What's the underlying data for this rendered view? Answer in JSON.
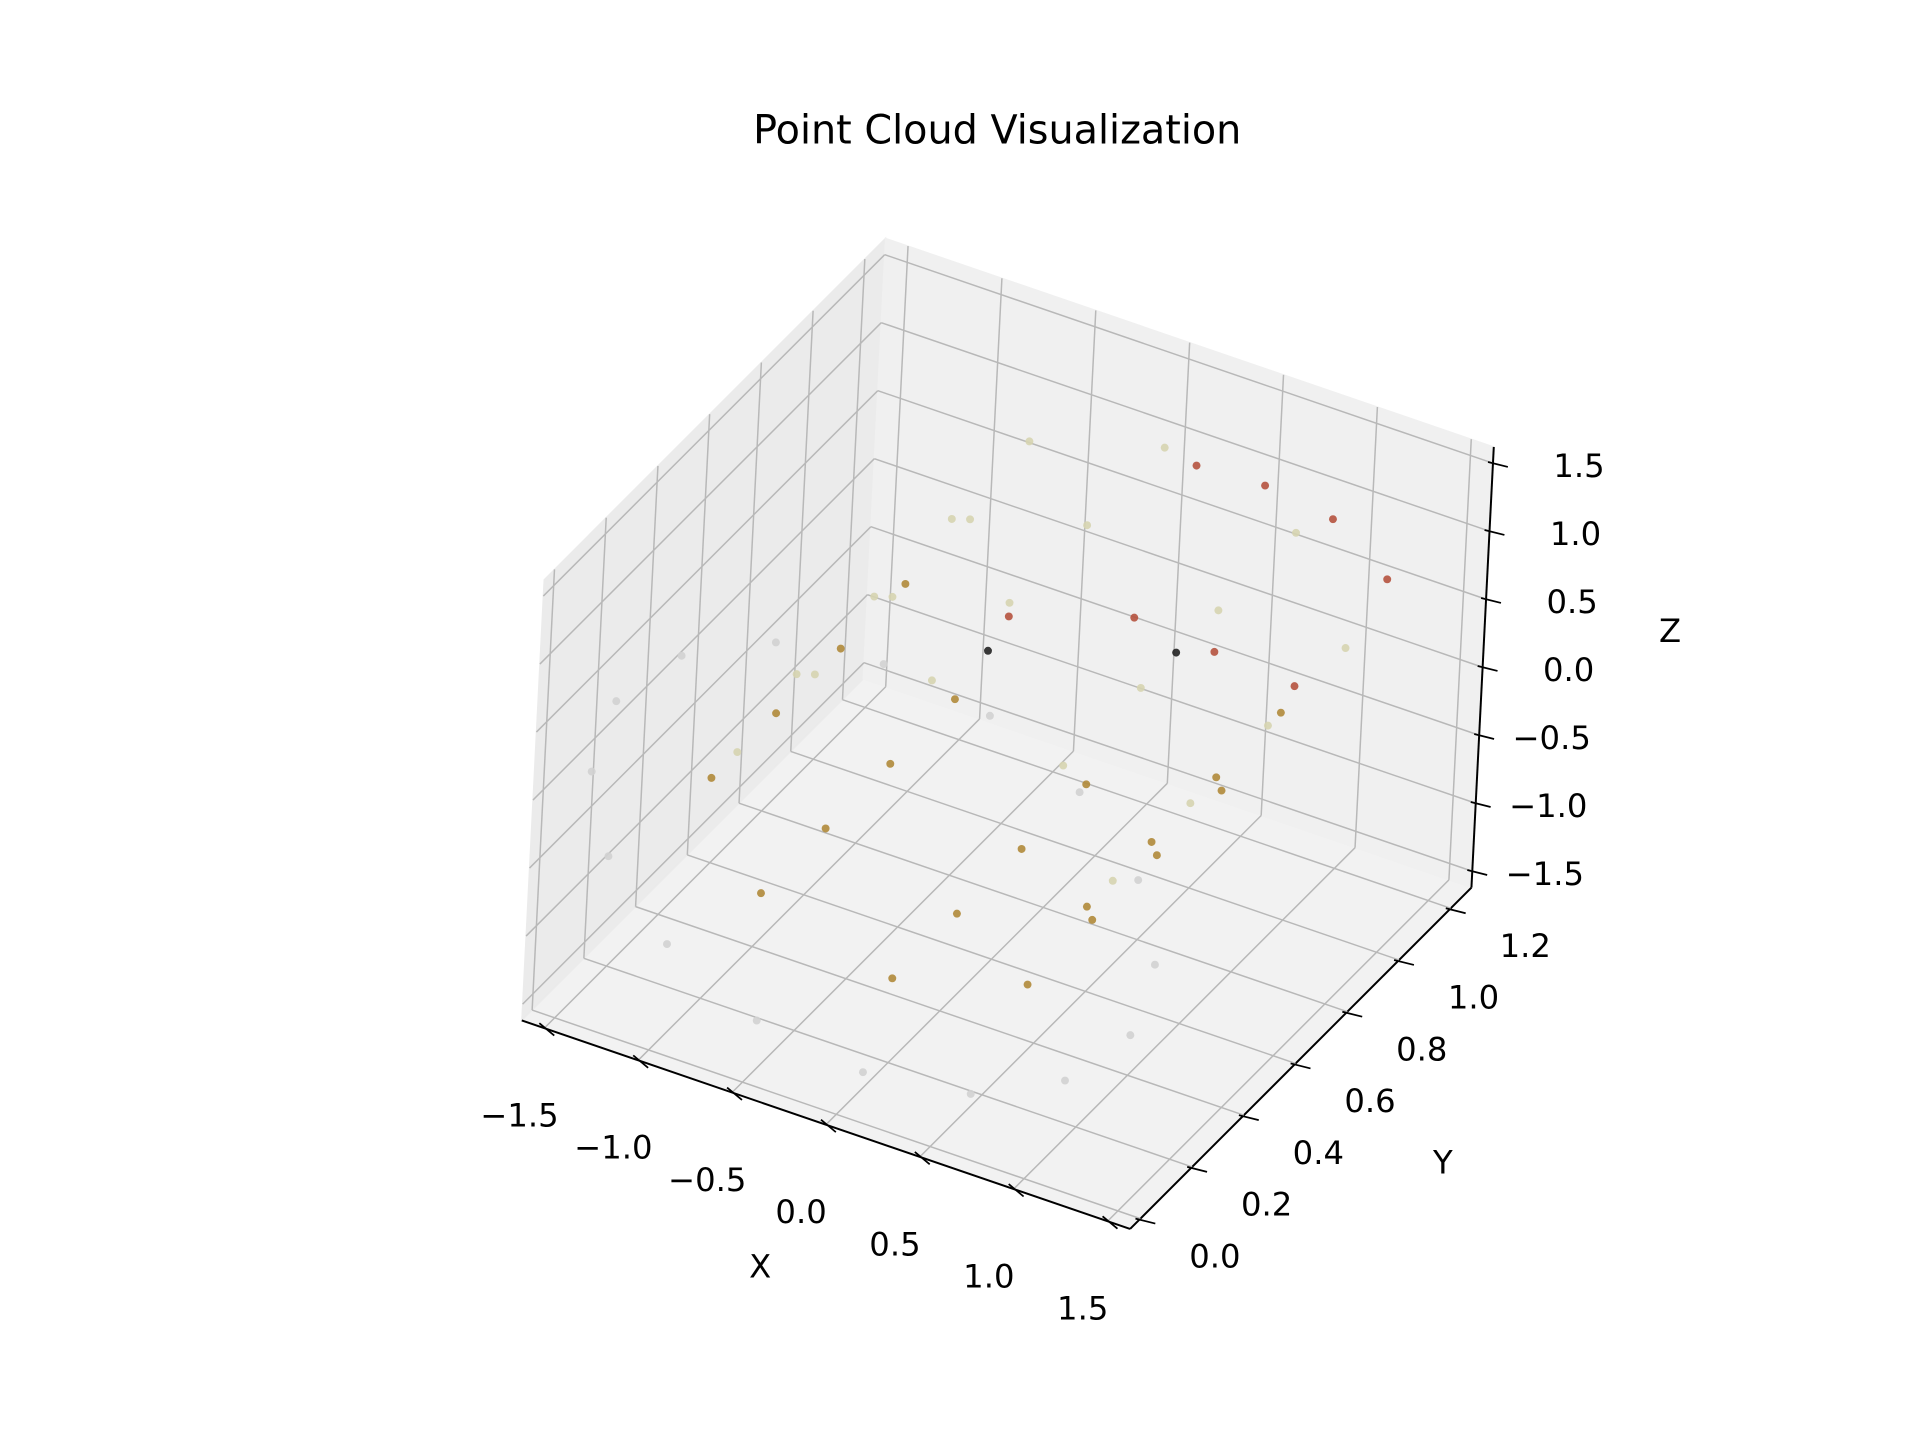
{
  "chart_data": {
    "type": "scatter3d",
    "title": "Point Cloud Visualization",
    "xlabel": "X",
    "ylabel": "Y",
    "zlabel": "Z",
    "xlim": [
      -1.62,
      1.62
    ],
    "ylim": [
      -0.04,
      1.28
    ],
    "zlim": [
      -1.62,
      1.62
    ],
    "xticks": [
      {
        "value": -1.5,
        "label": "−1.5"
      },
      {
        "value": -1.0,
        "label": "−1.0"
      },
      {
        "value": -0.5,
        "label": "−0.5"
      },
      {
        "value": 0,
        "label": "0.0"
      },
      0.5,
      {
        "value": 1.0,
        "label": "1.0"
      },
      1.5
    ],
    "yticks": [
      {
        "value": 0,
        "label": "0.0"
      },
      0.2,
      0.4,
      0.6,
      0.8,
      {
        "value": 1.0,
        "label": "1.0"
      },
      1.2
    ],
    "zticks": [
      {
        "value": -1.5,
        "label": "−1.5"
      },
      {
        "value": -1.0,
        "label": "−1.0"
      },
      {
        "value": -0.5,
        "label": "−0.5"
      },
      {
        "value": 0,
        "label": "0.0"
      },
      0.5,
      {
        "value": 1.0,
        "label": "1.0"
      },
      1.5
    ],
    "grid": true,
    "series": [
      {
        "color": "#d2d2d2",
        "x": [
          1.5,
          1.39,
          1.06,
          0.57,
          0,
          -0.57,
          -1.06,
          -1.39,
          -1.5,
          -1.39,
          -1.06,
          -0.57,
          0,
          0.57,
          1.06,
          1.39
        ],
        "y": [
          0.1,
          0.1,
          0.1,
          0.1,
          0.1,
          0.1,
          0.1,
          0.1,
          0.1,
          0.1,
          0.1,
          0.1,
          0.1,
          0.1,
          0.1,
          0.1
        ],
        "z": [
          0,
          0.57,
          1.06,
          1.39,
          1.5,
          1.39,
          1.06,
          0.57,
          0,
          -0.57,
          -1.06,
          -1.39,
          -1.5,
          -1.39,
          -1.06,
          -0.57
        ]
      },
      {
        "color": "#b08a3a",
        "x": [
          -1,
          -0.71,
          0,
          0.71,
          1,
          -1,
          -0.71,
          0,
          0.71,
          1,
          -1,
          -0.71,
          0,
          0.71,
          1,
          -1,
          -0.71,
          0,
          0.71,
          1
        ],
        "y": [
          0.2,
          0.2,
          0.2,
          0.2,
          0.2,
          0.45,
          0.45,
          0.45,
          0.45,
          0.45,
          0.7,
          0.7,
          0.7,
          0.7,
          0.7,
          0.95,
          0.95,
          0.95,
          0.95,
          0.95
        ],
        "z": [
          0,
          -0.71,
          -1,
          -0.71,
          0,
          0,
          -0.71,
          -1,
          -0.71,
          0,
          0,
          -0.71,
          -1,
          -0.71,
          0,
          0,
          -0.71,
          -1,
          -0.71,
          0
        ]
      },
      {
        "color": "#d6d4b0",
        "x": [
          1,
          0.71,
          0,
          -0.71,
          -1,
          1,
          0.71,
          0,
          -0.71,
          -1,
          1,
          0.71,
          0,
          -0.71,
          -1,
          1,
          0.71,
          0,
          -0.71,
          -1
        ],
        "y": [
          0.3,
          0.3,
          0.3,
          0.3,
          0.3,
          0.6,
          0.6,
          0.6,
          0.6,
          0.6,
          0.9,
          0.9,
          0.9,
          0.9,
          0.9,
          1.2,
          1.2,
          1.2,
          1.2,
          1.2
        ],
        "z": [
          0,
          0.71,
          1,
          0.71,
          0,
          0,
          0.71,
          1,
          0.71,
          0,
          0,
          0.71,
          1,
          0.71,
          0,
          0,
          0.71,
          1,
          0.71,
          0
        ]
      },
      {
        "color": "#b5523e",
        "x": [
          0.3,
          0.6,
          0.9,
          1.2,
          0.0,
          0.4,
          0.7,
          1.0
        ],
        "y": [
          1.1,
          1.15,
          1.2,
          1.2,
          0.6,
          0.8,
          0.9,
          1.0
        ],
        "z": [
          1.2,
          1.1,
          0.9,
          0.6,
          0.9,
          0.7,
          0.4,
          0.1
        ]
      },
      {
        "color": "#222222",
        "x": [
          -0.1,
          0.5
        ],
        "y": [
          0.6,
          0.9
        ],
        "z": [
          0.6,
          0.3
        ]
      }
    ]
  }
}
